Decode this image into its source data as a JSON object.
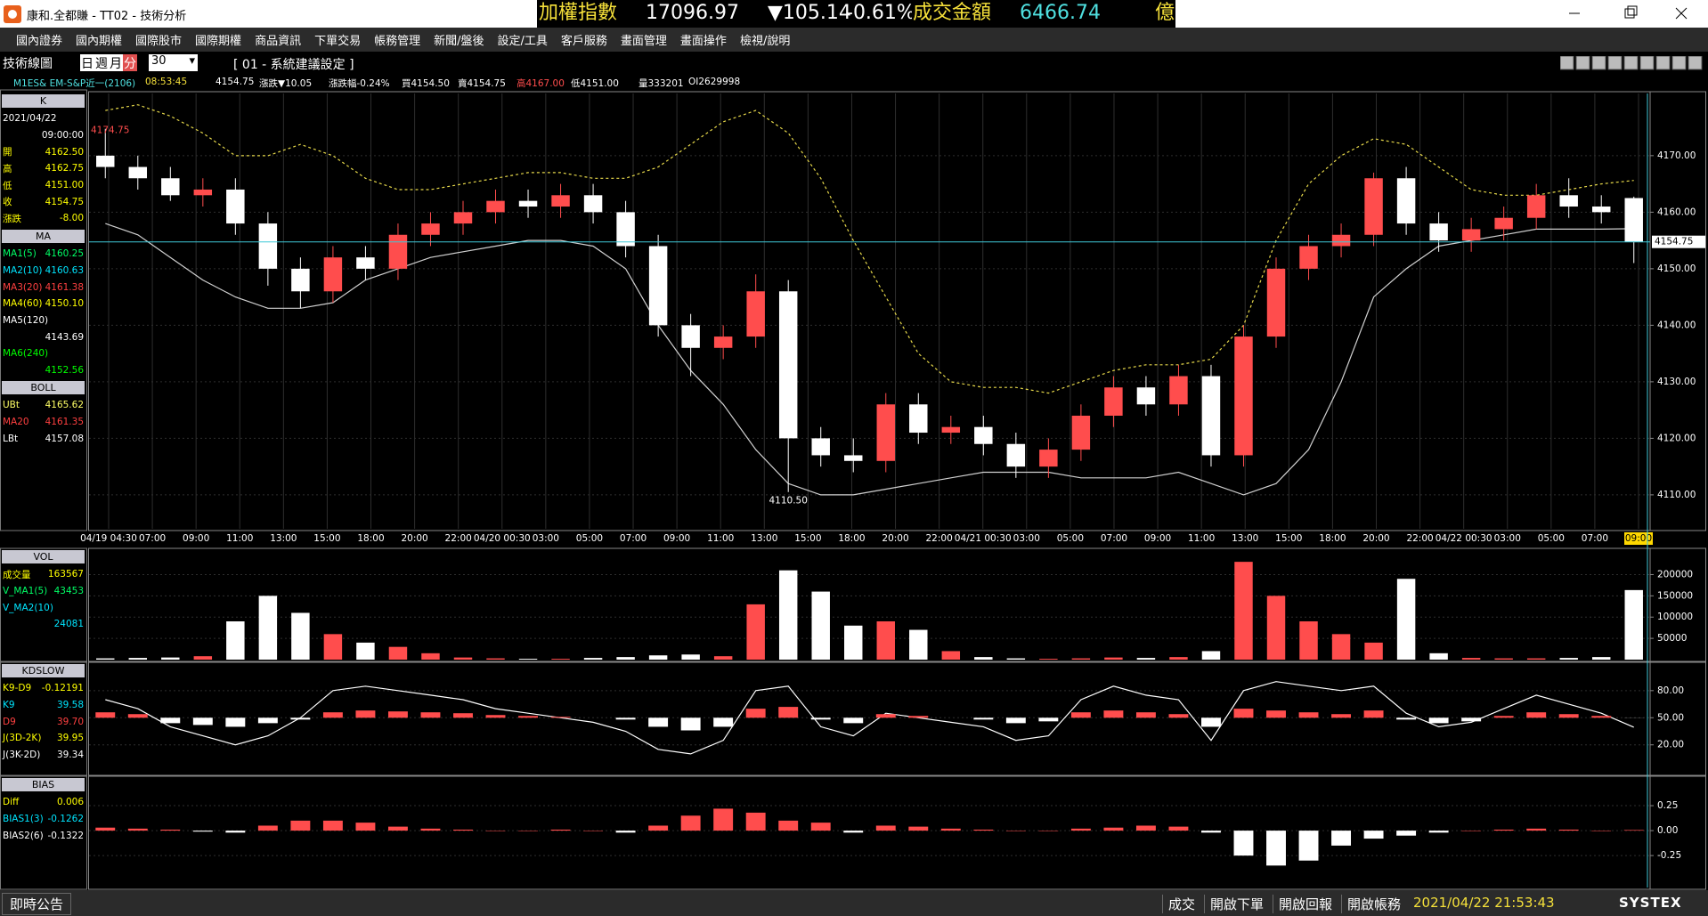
{
  "window": {
    "title": "康和.全都賺 - TT02 - 技術分析",
    "ticker": {
      "name": "加權指數",
      "index": "17096.97",
      "change": "▼105.14",
      "change_pct": "-0.61%",
      "turnover_label": "成交金額",
      "turnover": "6466.74",
      "unit": "億"
    }
  },
  "menu": [
    "國內證券",
    "國內期權",
    "國際股市",
    "國際期權",
    "商品資訊",
    "下單交易",
    "帳務管理",
    "新聞/盤後",
    "設定/工具",
    "客戶服務",
    "畫面管理",
    "畫面操作",
    "檢視/說明"
  ],
  "toolbar": {
    "label": "技術線圖",
    "period_options": [
      "日",
      "週",
      "月",
      "分"
    ],
    "selected_period": 3,
    "interval": "30",
    "template": "[ 01 - 系統建議設定 ]"
  },
  "info": {
    "symbol": "M1ES& EM-S&P近一(2106)",
    "time": "08:53:45",
    "last": "4154.75",
    "change": "漲跌▼10.05",
    "change_pct": "漲跌幅-0.24%",
    "bid": "買4154.50",
    "ask": "賣4154.75",
    "high": "高4167.00",
    "low": "低4151.00",
    "volume": "量333201",
    "oi": "OI2629998"
  },
  "left_panels": [
    {
      "title": "K",
      "rows": [
        {
          "label": "2021/04/22",
          "color": "#ffffff"
        },
        {
          "value": "09:00:00",
          "color": "#ffffff"
        },
        {
          "label": "開",
          "value": "4162.50",
          "color": "#ffff00"
        },
        {
          "label": "高",
          "value": "4162.75",
          "color": "#ffff00"
        },
        {
          "label": "低",
          "value": "4151.00",
          "color": "#ffff00"
        },
        {
          "label": "收",
          "value": "4154.75",
          "color": "#ffff00"
        },
        {
          "label": "漲跌",
          "value": "-8.00",
          "color": "#ffff00"
        }
      ]
    },
    {
      "title": "MA",
      "rows": [
        {
          "label": "MA1(5)",
          "value": "4160.25",
          "color": "#00ff66"
        },
        {
          "label": "MA2(10)",
          "value": "4160.63",
          "color": "#00e5ff"
        },
        {
          "label": "MA3(20)",
          "value": "4161.38",
          "color": "#ff4040"
        },
        {
          "label": "MA4(60)",
          "value": "4150.10",
          "color": "#ffff00"
        },
        {
          "label": "MA5(120)",
          "color": "#ffffff"
        },
        {
          "value": "4143.69",
          "color": "#ffffff"
        },
        {
          "label": "MA6(240)",
          "color": "#00ff00"
        },
        {
          "value": "4152.56",
          "color": "#00ff00"
        }
      ]
    },
    {
      "title": "BOLL",
      "rows": [
        {
          "label": "UBt",
          "value": "4165.62",
          "color": "#ffff66"
        },
        {
          "label": "MA20",
          "value": "4161.35",
          "color": "#ff4040"
        },
        {
          "label": "LBt",
          "value": "4157.08",
          "color": "#ffffff"
        }
      ]
    },
    {
      "title": "VOL",
      "rows": [
        {
          "label": "成交量",
          "value": "163567",
          "color": "#ffff00"
        },
        {
          "label": "V_MA1(5)",
          "value": "43453",
          "color": "#00ff66"
        },
        {
          "label": "V_MA2(10)",
          "color": "#00e5ff"
        },
        {
          "value": "24081",
          "color": "#00e5ff"
        }
      ]
    },
    {
      "title": "KDSLOW",
      "rows": [
        {
          "label": "K9-D9",
          "value": "-0.12191",
          "color": "#ffff00"
        },
        {
          "label": "K9",
          "value": "39.58",
          "color": "#00e5ff"
        },
        {
          "label": "D9",
          "value": "39.70",
          "color": "#ff4040"
        },
        {
          "label": "J(3D-2K)",
          "value": "39.95",
          "color": "#ffff00"
        },
        {
          "label": "J(3K-2D)",
          "value": "39.34",
          "color": "#ffffff"
        }
      ]
    },
    {
      "title": "BIAS",
      "rows": [
        {
          "label": "Diff",
          "value": "0.006",
          "color": "#ffff00"
        },
        {
          "label": "BIAS1(3)",
          "value": "-0.1262",
          "color": "#00e5ff"
        },
        {
          "label": "BIAS2(6)",
          "value": "-0.1322",
          "color": "#ffffff"
        }
      ]
    }
  ],
  "chart_data": [
    {
      "type": "candlestick",
      "open": [
        4170,
        4168,
        4166,
        4163,
        4164,
        4158,
        4150,
        4146,
        4152,
        4150,
        4156,
        4158,
        4160,
        4162,
        4161,
        4163,
        4160,
        4154,
        4140,
        4136,
        4138,
        4146,
        4120,
        4117,
        4116,
        4126,
        4121,
        4122,
        4119,
        4115,
        4118,
        4124,
        4129,
        4126,
        4131,
        4117,
        4138,
        4150,
        4154,
        4156,
        4166,
        4158,
        4155,
        4157,
        4159,
        4163,
        4161,
        4162.5
      ],
      "high": [
        4174.75,
        4170,
        4168,
        4166,
        4166,
        4160,
        4152,
        4154,
        4154,
        4158,
        4160,
        4162,
        4164,
        4164,
        4165,
        4165,
        4162,
        4156,
        4142,
        4140,
        4149,
        4148,
        4122,
        4120,
        4128,
        4128,
        4124,
        4124,
        4121,
        4120,
        4126,
        4131,
        4131,
        4133,
        4133,
        4140,
        4152,
        4156,
        4158,
        4167,
        4168,
        4160,
        4159,
        4161,
        4165,
        4166,
        4163,
        4162.75
      ],
      "low": [
        4166,
        4164,
        4162,
        4161,
        4156,
        4147,
        4143,
        4144,
        4148,
        4148,
        4154,
        4156,
        4158,
        4159,
        4159,
        4158,
        4152,
        4138,
        4131,
        4134,
        4136,
        4110.5,
        4115,
        4114,
        4114,
        4119,
        4119,
        4117,
        4113,
        4113,
        4116,
        4122,
        4124,
        4124,
        4115,
        4115,
        4136,
        4148,
        4152,
        4154,
        4156,
        4153,
        4153,
        4155,
        4157,
        4159,
        4158,
        4151
      ],
      "close": [
        4168,
        4166,
        4163,
        4164,
        4158,
        4150,
        4146,
        4152,
        4150,
        4156,
        4158,
        4160,
        4162,
        4161,
        4163,
        4160,
        4154,
        4140,
        4136,
        4138,
        4146,
        4120,
        4117,
        4116,
        4126,
        4121,
        4122,
        4119,
        4115,
        4118,
        4124,
        4129,
        4126,
        4131,
        4117,
        4138,
        4150,
        4154,
        4156,
        4166,
        4158,
        4155,
        4157,
        4159,
        4163,
        4161,
        4160,
        4154.75
      ],
      "up_color": "#ff4d4d",
      "down_color": "#ffffff",
      "lines": [
        {
          "color": "#e6d84a",
          "style": "dashed",
          "values": [
            4178,
            4179,
            4177,
            4174,
            4170,
            4170,
            4172,
            4170,
            4166,
            4164,
            4164,
            4165,
            4166,
            4167,
            4167,
            4166,
            4166,
            4168,
            4172,
            4176,
            4178,
            4174,
            4166,
            4155,
            4145,
            4135,
            4130,
            4129,
            4129,
            4128,
            4130,
            4132,
            4133,
            4133,
            4134,
            4140,
            4155,
            4165,
            4170,
            4173,
            4172,
            4168,
            4164,
            4163,
            4163,
            4164,
            4165,
            4165.62
          ]
        },
        {
          "color": "#d0d0d0",
          "style": "solid",
          "values": [
            4158,
            4156,
            4152,
            4148,
            4145,
            4143,
            4143,
            4144,
            4148,
            4150,
            4152,
            4153,
            4154,
            4155,
            4155,
            4154,
            4150,
            4140,
            4132,
            4126,
            4118,
            4112,
            4110,
            4110,
            4111,
            4112,
            4113,
            4114,
            4114,
            4114,
            4113,
            4113,
            4113,
            4114,
            4112,
            4110,
            4112,
            4118,
            4130,
            4145,
            4150,
            4154,
            4155,
            4156,
            4157,
            4157,
            4157,
            4157.08
          ]
        }
      ],
      "ylim": [
        4104,
        4181
      ],
      "yticks": [
        {
          "value": 4110,
          "label": "4110.00"
        },
        {
          "value": 4120,
          "label": "4120.00"
        },
        {
          "value": 4130,
          "label": "4130.00"
        },
        {
          "value": 4140,
          "label": "4140.00"
        },
        {
          "value": 4150,
          "label": "4150.00"
        },
        {
          "value": 4160,
          "label": "4160.00"
        },
        {
          "value": 4170,
          "label": "4170.00"
        }
      ],
      "xtick_labels": [
        "04/19 04:30",
        "07:00",
        "09:00",
        "11:00",
        "13:00",
        "15:00",
        "18:00",
        "20:00",
        "22:00",
        "04/20 00:30",
        "03:00",
        "05:00",
        "07:00",
        "09:00",
        "11:00",
        "13:00",
        "15:00",
        "18:00",
        "20:00",
        "22:00",
        "04/21 00:30",
        "03:00",
        "05:00",
        "07:00",
        "09:00",
        "11:00",
        "13:00",
        "15:00",
        "18:00",
        "20:00",
        "22:00",
        "04/22 00:30",
        "03:00",
        "05:00",
        "07:00",
        "09:00"
      ],
      "high_label": "4174.75",
      "low_label": "4110.50",
      "grid": true
    },
    {
      "type": "volume",
      "values": [
        3000,
        4000,
        5000,
        8000,
        90000,
        150000,
        110000,
        60000,
        40000,
        30000,
        15000,
        5000,
        3000,
        2000,
        2000,
        4000,
        6000,
        10000,
        12000,
        8000,
        130000,
        210000,
        160000,
        80000,
        90000,
        70000,
        20000,
        6000,
        3000,
        2000,
        3000,
        5000,
        4000,
        6000,
        20000,
        230000,
        150000,
        90000,
        60000,
        40000,
        190000,
        15000,
        4000,
        3000,
        3000,
        4000,
        6000,
        163567
      ],
      "up_color": "#ff4d4d",
      "down_color": "#ffffff",
      "ylim": [
        0,
        257500
      ],
      "yticks": [
        50000,
        100000,
        150000,
        200000
      ]
    },
    {
      "type": "kd",
      "values": [
        56,
        54,
        44,
        42,
        40,
        44,
        48,
        56,
        58,
        57,
        56,
        55,
        53,
        52,
        51,
        50,
        48,
        40,
        36,
        40,
        60,
        62,
        48,
        44,
        54,
        52,
        50,
        48,
        44,
        46,
        56,
        58,
        56,
        54,
        40,
        60,
        58,
        56,
        54,
        58,
        48,
        44,
        46,
        52,
        56,
        54,
        52,
        49.88
      ],
      "up_color": "#ff4d4d",
      "down_color": "#ffffff",
      "lines": [
        {
          "color": "#ffffff",
          "style": "solid",
          "values": [
            70,
            60,
            40,
            30,
            20,
            30,
            50,
            80,
            85,
            80,
            75,
            70,
            60,
            55,
            50,
            45,
            35,
            15,
            10,
            25,
            80,
            85,
            40,
            30,
            55,
            50,
            45,
            40,
            25,
            30,
            70,
            85,
            75,
            70,
            25,
            80,
            90,
            85,
            80,
            85,
            55,
            40,
            45,
            60,
            75,
            65,
            55,
            39.58
          ]
        }
      ],
      "ylim": [
        -11.8,
        109.4
      ],
      "yticks": [
        {
          "value": 20,
          "label": "20.00"
        },
        {
          "value": 50,
          "label": "50.00"
        },
        {
          "value": 80,
          "label": "80.00"
        }
      ]
    },
    {
      "type": "bar",
      "values": [
        0.03,
        0.02,
        0.01,
        -0.01,
        -0.02,
        0.05,
        0.1,
        0.1,
        0.08,
        0.04,
        0.02,
        0.01,
        0,
        0,
        0.01,
        0,
        -0.02,
        0.05,
        0.15,
        0.22,
        0.18,
        0.1,
        0.08,
        -0.02,
        0.05,
        0.04,
        0.02,
        0.01,
        0,
        0,
        0.02,
        0.03,
        0.05,
        0.04,
        -0.02,
        -0.25,
        -0.35,
        -0.3,
        -0.15,
        -0.08,
        -0.05,
        -0.02,
        0,
        0.01,
        0.02,
        0.01,
        0,
        0.006
      ],
      "up_color": "#ff4d4d",
      "down_color": "#ffffff",
      "ylim": [
        -0.57,
        0.527
      ],
      "yticks": [
        0.25,
        {
          "value": 0,
          "label": "0.00"
        },
        -0.25
      ]
    }
  ],
  "status": {
    "notice": "即時公告",
    "items": [
      "成交",
      "開啟下單",
      "開啟回報",
      "開啟帳務"
    ],
    "clock": "2021/04/22 21:53:43",
    "brand": "SYSTEX"
  }
}
